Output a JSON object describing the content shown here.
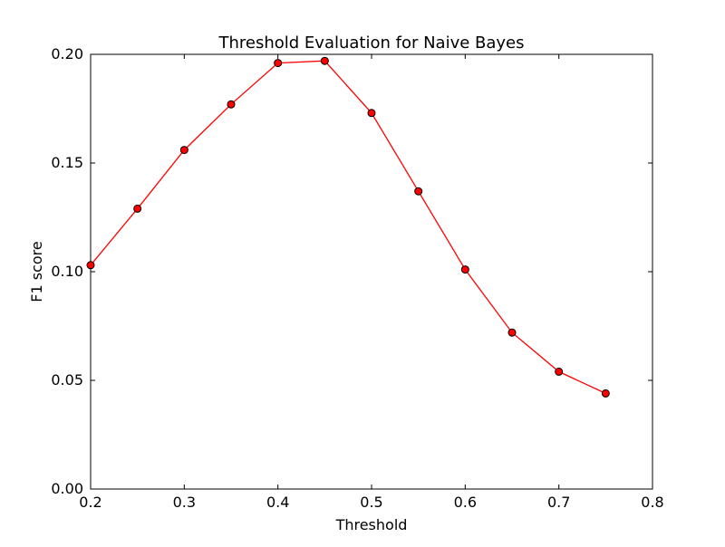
{
  "chart_data": {
    "type": "line",
    "title": "Threshold Evaluation for Naive Bayes",
    "xlabel": "Threshold",
    "ylabel": "F1 score",
    "xlim": [
      0.2,
      0.8
    ],
    "ylim": [
      0.0,
      0.2
    ],
    "x_ticks": [
      "0.2",
      "0.3",
      "0.4",
      "0.5",
      "0.6",
      "0.7",
      "0.8"
    ],
    "y_ticks": [
      "0.00",
      "0.05",
      "0.10",
      "0.15",
      "0.20"
    ],
    "grid": false,
    "legend": "none",
    "line_color": "#ff0000",
    "marker_color": "#ff0000",
    "marker_edge_color": "#000000",
    "series": [
      {
        "x": [
          0.2,
          0.25,
          0.3,
          0.35,
          0.4,
          0.45,
          0.5,
          0.55,
          0.6,
          0.65,
          0.7,
          0.75
        ],
        "y": [
          0.103,
          0.129,
          0.156,
          0.177,
          0.196,
          0.197,
          0.173,
          0.137,
          0.101,
          0.072,
          0.054,
          0.044
        ]
      }
    ]
  }
}
